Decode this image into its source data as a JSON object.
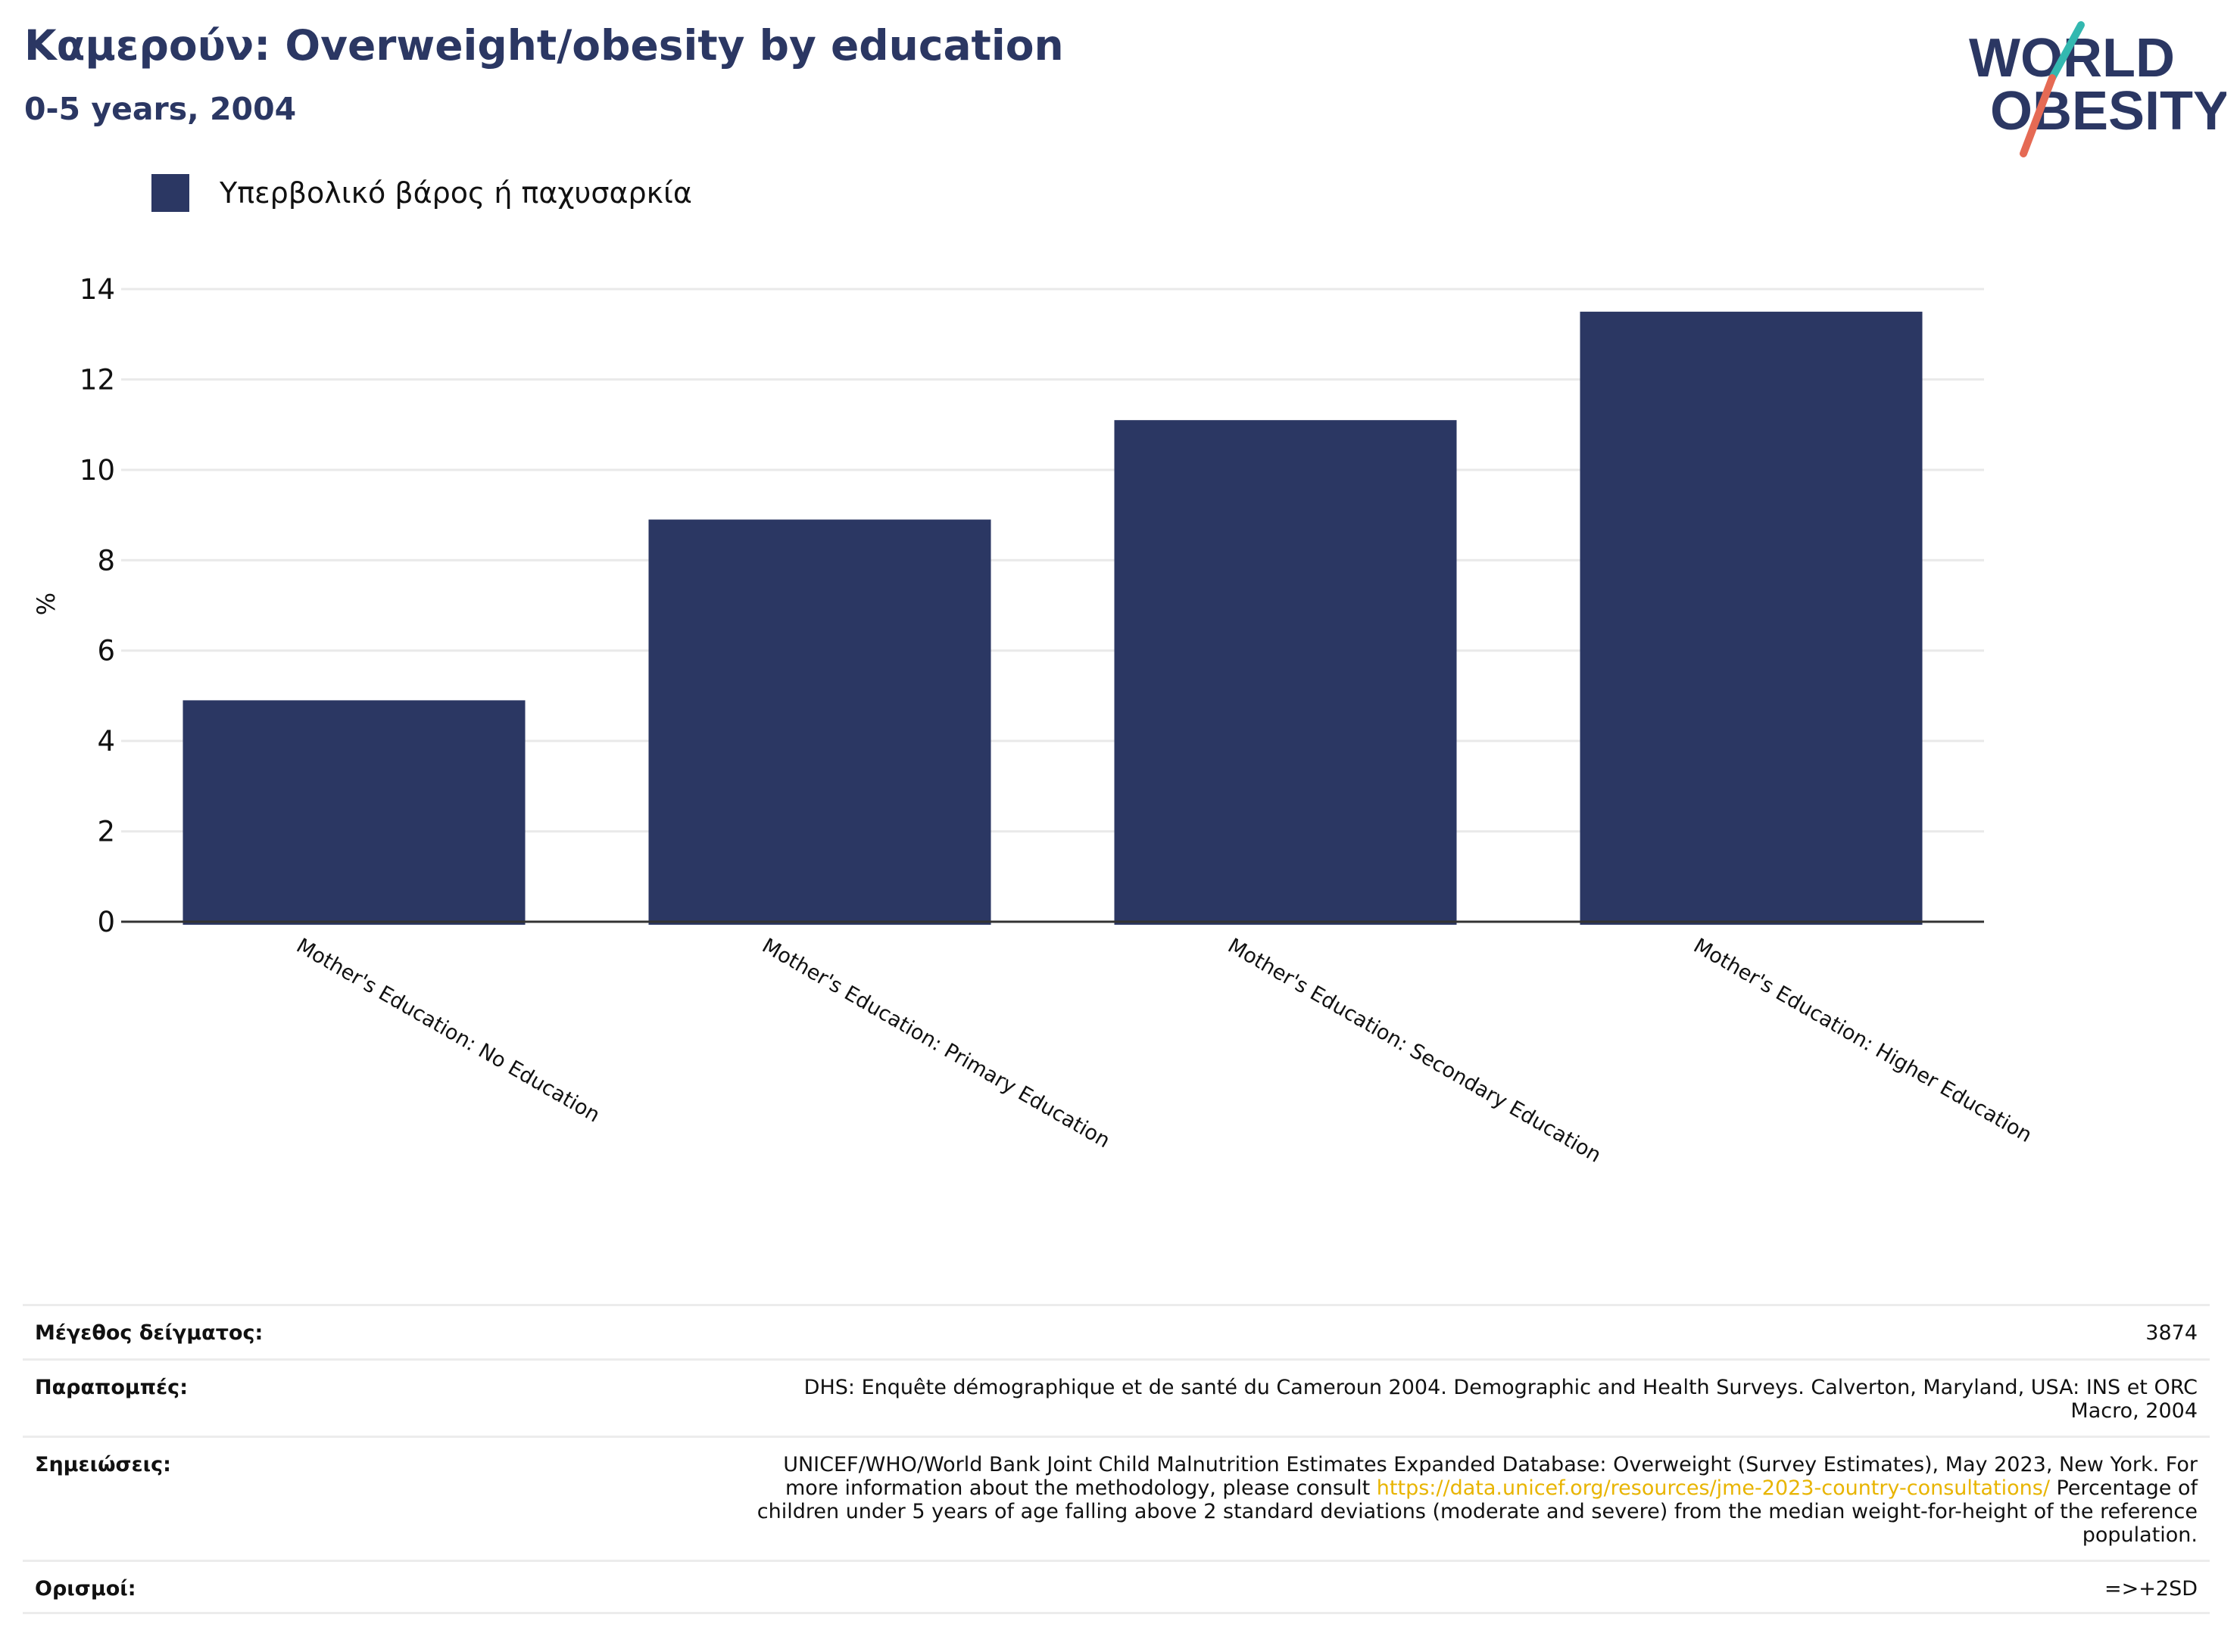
{
  "header": {
    "title": "Καμερούν: Overweight/obesity by education",
    "subtitle": "0-5 years, 2004"
  },
  "logo": {
    "line1": "WORLD",
    "line2": "OBESITY",
    "colors": {
      "text": "#2b3763",
      "slash_teal": "#33b8b0",
      "slash_coral": "#e56a54"
    }
  },
  "colors": {
    "bar": "#2b3763",
    "grid": "#e9e9e9",
    "axis": "#333333",
    "link": "#e8b400"
  },
  "chart_data": {
    "type": "bar",
    "title": "Καμερούν: Overweight/obesity by education",
    "subtitle": "0-5 years, 2004",
    "categories": [
      "Mother's Education: No Education",
      "Mother's Education: Primary Education",
      "Mother's Education: Secondary Education",
      "Mother's Education: Higher Education"
    ],
    "series": [
      {
        "name": "Υπερβολικό βάρος ή παχυσαρκία",
        "values": [
          4.9,
          8.9,
          11.1,
          13.5
        ]
      }
    ],
    "xlabel": "",
    "ylabel": "%",
    "ylim": [
      0,
      14
    ],
    "yticks": [
      0,
      2,
      4,
      6,
      8,
      10,
      12,
      14
    ],
    "grid": true,
    "legend_position": "top-left"
  },
  "meta": {
    "sample_size": {
      "label": "Μέγεθος δείγματος:",
      "value": "3874"
    },
    "references": {
      "label": "Παραπομπές:",
      "line1": "DHS: Enquête démographique et de santé du Cameroun 2004. Demographic and Health Surveys. Calverton, Maryland, USA: INS et ORC",
      "line2": "Macro, 2004"
    },
    "notes": {
      "label": "Σημειώσεις:",
      "line1": "UNICEF/WHO/World Bank Joint Child Malnutrition Estimates Expanded Database: Overweight (Survey Estimates), May 2023, New York. For",
      "line2_before": "more information about the methodology, please consult ",
      "link": "https://data.unicef.org/resources/jme-2023-country-consultations/",
      "line2_after": " Percentage of",
      "line3": "children under 5 years of age falling above 2 standard deviations (moderate and severe) from the median weight-for-height of the reference",
      "line4": "population."
    },
    "definitions": {
      "label": "Ορισμοί:",
      "value": "=>+2SD"
    }
  }
}
